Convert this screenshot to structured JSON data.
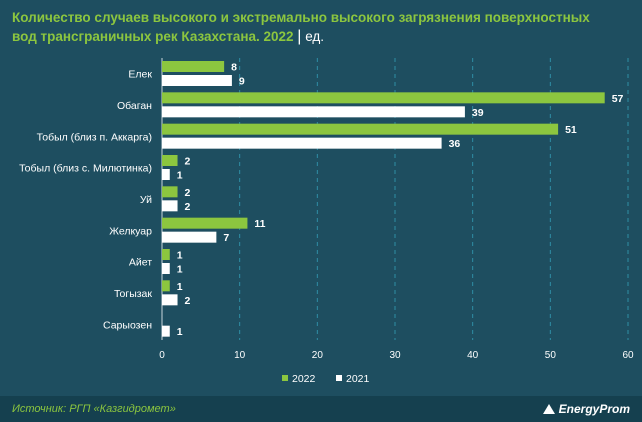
{
  "title": {
    "main": "Количество случаев высокого и экстремально высокого загрязнения поверхностных вод трансграничных рек Казахстана. 2022",
    "separator": "|",
    "unit": "ед."
  },
  "footer": {
    "source": "Источник: РГП «Казгидромет»",
    "brand": "EnergyProm"
  },
  "colors": {
    "background": "#1e4e60",
    "footer_background": "#15404f",
    "series_2022": "#8cc63f",
    "series_2021": "#ffffff",
    "grid": "#2f8ea5"
  },
  "chart_data": {
    "type": "bar",
    "orientation": "horizontal",
    "categories": [
      "Елек",
      "Обаган",
      "Тобыл (близ п. Аккарга)",
      "Тобыл (близ с. Милютинка)",
      "Уй",
      "Желкуар",
      "Айет",
      "Тогызак",
      "Сарыозен"
    ],
    "series": [
      {
        "name": "2022",
        "values": [
          8,
          57,
          51,
          2,
          2,
          11,
          1,
          1,
          null
        ]
      },
      {
        "name": "2021",
        "values": [
          9,
          39,
          36,
          1,
          2,
          7,
          1,
          2,
          1
        ]
      }
    ],
    "xlim": [
      0,
      60
    ],
    "xticks": [
      0,
      10,
      20,
      30,
      40,
      50,
      60
    ],
    "grid": true,
    "legend_position": "bottom"
  }
}
